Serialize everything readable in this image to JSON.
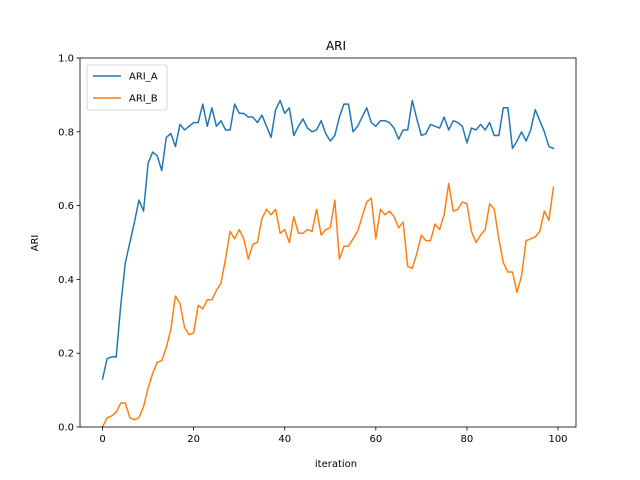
{
  "chart_data": {
    "type": "line",
    "title": "ARI",
    "xlabel": "iteration",
    "ylabel": "ARI",
    "xlim": [
      -4.95,
      103.95
    ],
    "ylim": [
      0.0,
      1.0
    ],
    "xticks": [
      0,
      20,
      40,
      60,
      80,
      100
    ],
    "yticks": [
      0.0,
      0.2,
      0.4,
      0.6,
      0.8,
      1.0
    ],
    "ytick_labels": [
      "0.0",
      "0.2",
      "0.4",
      "0.6",
      "0.8",
      "1.0"
    ],
    "grid": false,
    "legend": "upper-left",
    "x": [
      0,
      1,
      2,
      3,
      4,
      5,
      6,
      7,
      8,
      9,
      10,
      11,
      12,
      13,
      14,
      15,
      16,
      17,
      18,
      19,
      20,
      21,
      22,
      23,
      24,
      25,
      26,
      27,
      28,
      29,
      30,
      31,
      32,
      33,
      34,
      35,
      36,
      37,
      38,
      39,
      40,
      41,
      42,
      43,
      44,
      45,
      46,
      47,
      48,
      49,
      50,
      51,
      52,
      53,
      54,
      55,
      56,
      57,
      58,
      59,
      60,
      61,
      62,
      63,
      64,
      65,
      66,
      67,
      68,
      69,
      70,
      71,
      72,
      73,
      74,
      75,
      76,
      77,
      78,
      79,
      80,
      81,
      82,
      83,
      84,
      85,
      86,
      87,
      88,
      89,
      90,
      91,
      92,
      93,
      94,
      95,
      96,
      97,
      98,
      99
    ],
    "series": [
      {
        "name": "ARI_A",
        "color": "#1f77b4",
        "values": [
          0.13,
          0.185,
          0.19,
          0.19,
          0.33,
          0.445,
          0.5,
          0.555,
          0.615,
          0.585,
          0.715,
          0.745,
          0.735,
          0.695,
          0.785,
          0.795,
          0.76,
          0.82,
          0.805,
          0.815,
          0.825,
          0.825,
          0.875,
          0.815,
          0.865,
          0.815,
          0.83,
          0.805,
          0.805,
          0.875,
          0.85,
          0.85,
          0.84,
          0.84,
          0.825,
          0.845,
          0.815,
          0.785,
          0.86,
          0.885,
          0.85,
          0.865,
          0.79,
          0.815,
          0.835,
          0.81,
          0.8,
          0.805,
          0.83,
          0.795,
          0.775,
          0.79,
          0.84,
          0.875,
          0.875,
          0.8,
          0.815,
          0.84,
          0.865,
          0.825,
          0.815,
          0.83,
          0.83,
          0.825,
          0.81,
          0.78,
          0.805,
          0.805,
          0.885,
          0.835,
          0.79,
          0.795,
          0.82,
          0.815,
          0.81,
          0.84,
          0.805,
          0.83,
          0.825,
          0.815,
          0.77,
          0.81,
          0.805,
          0.82,
          0.805,
          0.825,
          0.79,
          0.79,
          0.865,
          0.865,
          0.755,
          0.775,
          0.8,
          0.775,
          0.805,
          0.86,
          0.83,
          0.8,
          0.76,
          0.755
        ]
      },
      {
        "name": "ARI_B",
        "color": "#ff7f0e",
        "values": [
          0.0,
          0.025,
          0.03,
          0.04,
          0.065,
          0.065,
          0.025,
          0.02,
          0.025,
          0.055,
          0.105,
          0.145,
          0.175,
          0.18,
          0.215,
          0.265,
          0.355,
          0.335,
          0.27,
          0.25,
          0.255,
          0.33,
          0.32,
          0.345,
          0.345,
          0.37,
          0.39,
          0.455,
          0.53,
          0.51,
          0.535,
          0.51,
          0.455,
          0.495,
          0.5,
          0.565,
          0.59,
          0.575,
          0.59,
          0.525,
          0.535,
          0.5,
          0.57,
          0.525,
          0.525,
          0.535,
          0.53,
          0.59,
          0.52,
          0.535,
          0.54,
          0.615,
          0.455,
          0.49,
          0.49,
          0.51,
          0.53,
          0.57,
          0.61,
          0.62,
          0.51,
          0.59,
          0.575,
          0.585,
          0.57,
          0.54,
          0.555,
          0.435,
          0.43,
          0.47,
          0.52,
          0.505,
          0.505,
          0.55,
          0.535,
          0.575,
          0.66,
          0.585,
          0.59,
          0.61,
          0.605,
          0.53,
          0.5,
          0.52,
          0.535,
          0.605,
          0.59,
          0.51,
          0.445,
          0.42,
          0.42,
          0.365,
          0.41,
          0.505,
          0.51,
          0.515,
          0.53,
          0.585,
          0.56,
          0.65
        ]
      }
    ]
  }
}
